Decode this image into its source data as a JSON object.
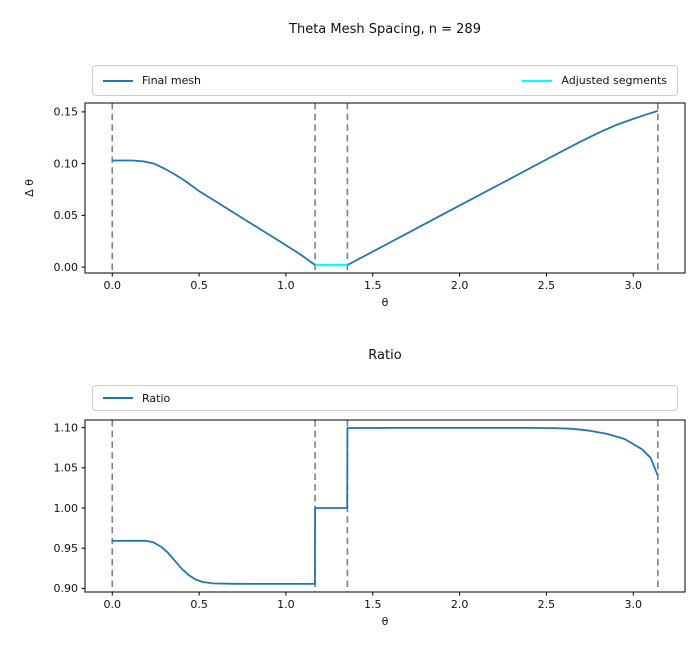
{
  "figure": {
    "background": "#ffffff",
    "line_blue": "#1f77b4",
    "line_cyan": "#00ffff",
    "guide_gray": "#7f7f7f"
  },
  "chart_data": [
    {
      "type": "line",
      "title": "Theta Mesh Spacing, n = 289",
      "xlabel": "θ",
      "ylabel": "Δ θ",
      "xlim": [
        -0.157,
        3.298
      ],
      "ylim": [
        -0.0057,
        0.1586
      ],
      "grid": false,
      "legend_position": "above-expanded",
      "xticks": {
        "values": [
          0.0,
          0.5,
          1.0,
          1.5,
          2.0,
          2.5,
          3.0
        ],
        "labels": [
          "0.0",
          "0.5",
          "1.0",
          "1.5",
          "2.0",
          "2.5",
          "3.0"
        ]
      },
      "yticks": {
        "values": [
          0.0,
          0.05,
          0.1,
          0.15
        ],
        "labels": [
          "0.00",
          "0.05",
          "0.10",
          "0.15"
        ]
      },
      "vlines": {
        "x": [
          0,
          1.168,
          1.354,
          3.1416
        ],
        "color": "#7f7f7f",
        "style": "dashed"
      },
      "series": [
        {
          "name": "Final mesh",
          "color": "#1f77b4",
          "width": 1.8,
          "points": [
            [
              0,
              0.103
            ],
            [
              0.12,
              0.103
            ],
            [
              0.18,
              0.1022
            ],
            [
              0.24,
              0.1
            ],
            [
              0.3,
              0.0952
            ],
            [
              0.36,
              0.0896
            ],
            [
              0.42,
              0.0832
            ],
            [
              0.5,
              0.0735
            ],
            [
              0.6,
              0.063
            ],
            [
              0.7,
              0.0525
            ],
            [
              0.8,
              0.042
            ],
            [
              0.9,
              0.0316
            ],
            [
              1.0,
              0.0211
            ],
            [
              1.08,
              0.0127
            ],
            [
              1.168,
              0.002
            ],
            [
              1.354,
              0.002
            ],
            [
              1.5,
              0.015
            ],
            [
              1.7,
              0.0328
            ],
            [
              1.9,
              0.0506
            ],
            [
              2.1,
              0.0684
            ],
            [
              2.3,
              0.0862
            ],
            [
              2.5,
              0.104
            ],
            [
              2.6,
              0.1129
            ],
            [
              2.7,
              0.1216
            ],
            [
              2.8,
              0.1298
            ],
            [
              2.9,
              0.1372
            ],
            [
              3.0,
              0.1432
            ],
            [
              3.07,
              0.1472
            ],
            [
              3.1416,
              0.151
            ]
          ]
        },
        {
          "name": "Adjusted segments",
          "color": "#00ffff",
          "width": 2.2,
          "points": [
            [
              1.168,
              0.002
            ],
            [
              1.354,
              0.002
            ]
          ]
        }
      ]
    },
    {
      "type": "line",
      "title": "Ratio",
      "xlabel": "θ",
      "ylabel": "",
      "xlim": [
        -0.157,
        3.298
      ],
      "ylim": [
        0.8955,
        1.1095
      ],
      "grid": false,
      "legend_position": "above-expanded",
      "xticks": {
        "values": [
          0.0,
          0.5,
          1.0,
          1.5,
          2.0,
          2.5,
          3.0
        ],
        "labels": [
          "0.0",
          "0.5",
          "1.0",
          "1.5",
          "2.0",
          "2.5",
          "3.0"
        ]
      },
      "yticks": {
        "values": [
          0.9,
          0.95,
          1.0,
          1.05,
          1.1
        ],
        "labels": [
          "0.90",
          "0.95",
          "1.00",
          "1.05",
          "1.10"
        ]
      },
      "vlines": {
        "x": [
          0,
          1.168,
          1.354,
          3.1416
        ],
        "color": "#7f7f7f",
        "style": "dashed"
      },
      "series": [
        {
          "name": "Ratio",
          "color": "#1f77b4",
          "width": 1.8,
          "points": [
            [
              0,
              0.9592
            ],
            [
              0.19,
              0.9592
            ],
            [
              0.235,
              0.9575
            ],
            [
              0.28,
              0.952
            ],
            [
              0.32,
              0.9445
            ],
            [
              0.36,
              0.9345
            ],
            [
              0.4,
              0.9245
            ],
            [
              0.44,
              0.9165
            ],
            [
              0.48,
              0.911
            ],
            [
              0.52,
              0.908
            ],
            [
              0.58,
              0.9062
            ],
            [
              0.7,
              0.9057
            ],
            [
              0.9,
              0.9056
            ],
            [
              1.1,
              0.9056
            ],
            [
              1.167,
              0.9056
            ],
            [
              1.168,
              1.0
            ],
            [
              1.353,
              1.0
            ],
            [
              1.354,
              1.0995
            ],
            [
              1.6,
              1.0997
            ],
            [
              2.0,
              1.0997
            ],
            [
              2.4,
              1.0997
            ],
            [
              2.55,
              1.0994
            ],
            [
              2.65,
              1.0985
            ],
            [
              2.75,
              1.0962
            ],
            [
              2.85,
              1.0922
            ],
            [
              2.95,
              1.0858
            ],
            [
              3.05,
              1.0732
            ],
            [
              3.1,
              1.0625
            ],
            [
              3.1416,
              1.0405
            ]
          ]
        }
      ]
    }
  ]
}
